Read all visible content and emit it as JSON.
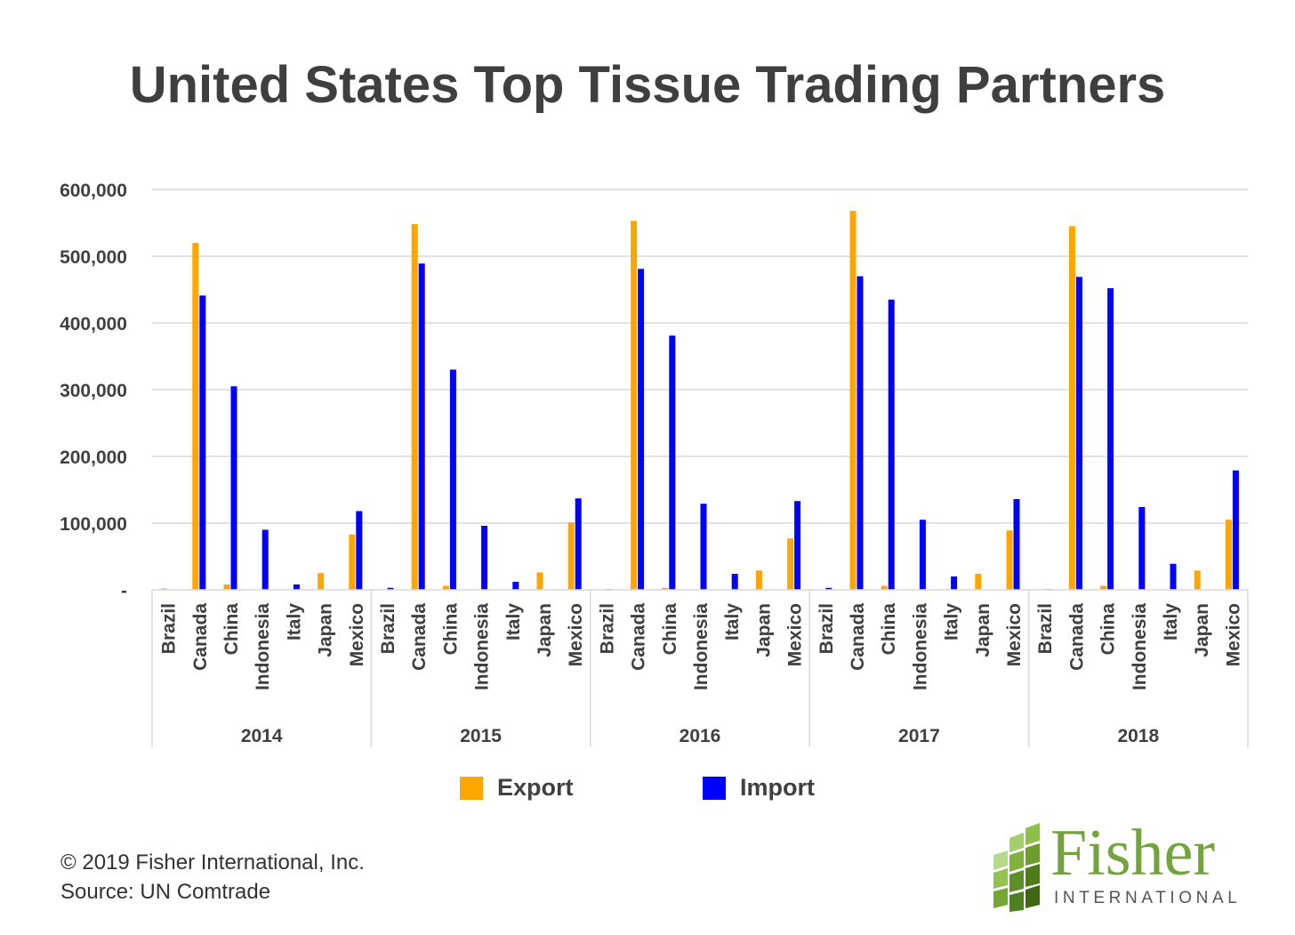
{
  "title": "United States Top Tissue Trading Partners",
  "chart_data": {
    "type": "bar",
    "title": "United States Top Tissue Trading Partners",
    "xlabel": "",
    "ylabel": "",
    "ylim": [
      0,
      600000
    ],
    "yticks": [
      0,
      100000,
      200000,
      300000,
      400000,
      500000,
      600000
    ],
    "ytick_labels": [
      "-",
      "100,000",
      "200,000",
      "300,000",
      "400,000",
      "500,000",
      "600,000"
    ],
    "grid": true,
    "legend_position": "bottom",
    "groups": [
      "2014",
      "2015",
      "2016",
      "2017",
      "2018"
    ],
    "categories": [
      "Brazil",
      "Canada",
      "China",
      "Indonesia",
      "Italy",
      "Japan",
      "Mexico"
    ],
    "series": [
      {
        "name": "Export",
        "color": "#FFA500",
        "values": [
          [
            2000,
            520000,
            8000,
            0,
            0,
            25000,
            83000
          ],
          [
            0,
            548000,
            6000,
            0,
            0,
            26000,
            101000
          ],
          [
            0,
            553000,
            3000,
            0,
            0,
            29000,
            77000
          ],
          [
            0,
            568000,
            6000,
            0,
            0,
            24000,
            89000
          ],
          [
            0,
            545000,
            6000,
            0,
            0,
            29000,
            105000
          ]
        ]
      },
      {
        "name": "Import",
        "color": "#0000FF",
        "values": [
          [
            0,
            441000,
            305000,
            90000,
            8000,
            0,
            118000
          ],
          [
            3000,
            489000,
            330000,
            96000,
            12000,
            0,
            137000
          ],
          [
            1000,
            481000,
            381000,
            129000,
            24000,
            0,
            133000
          ],
          [
            3000,
            470000,
            435000,
            105000,
            20000,
            0,
            136000
          ],
          [
            1000,
            469000,
            452000,
            124000,
            39000,
            0,
            179000
          ]
        ]
      }
    ]
  },
  "legend": {
    "export_label": "Export",
    "import_label": "Import"
  },
  "footer": {
    "copyright": "© 2019 Fisher International, Inc.",
    "source": "Source: UN Comtrade"
  },
  "logo": {
    "word": "Fisher",
    "sub": "INTERNATIONAL"
  }
}
